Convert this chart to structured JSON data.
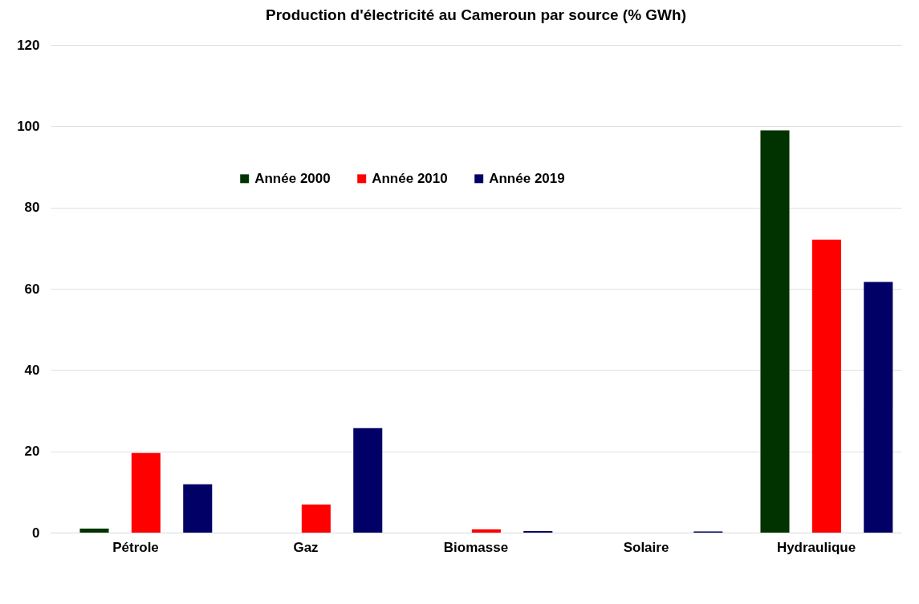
{
  "chart_data": {
    "type": "bar",
    "title": "Production d'électricité au  Cameroun par source (% GWh)",
    "categories": [
      "Pétrole",
      "Gaz",
      "Biomasse",
      "Solaire",
      "Hydraulique"
    ],
    "series": [
      {
        "name": "Année 2000",
        "color": "#003300",
        "values": [
          1.0,
          0,
          0,
          0,
          99.0
        ]
      },
      {
        "name": "Année 2010",
        "color": "#ff0000",
        "values": [
          19.6,
          6.9,
          0.8,
          0,
          72.1
        ]
      },
      {
        "name": "Année 2019",
        "color": "#000066",
        "values": [
          11.9,
          25.7,
          0.4,
          0.3,
          61.7
        ]
      }
    ],
    "ylim": [
      0,
      120
    ],
    "yticks": [
      0,
      20,
      40,
      60,
      80,
      100,
      120
    ],
    "grid": "y",
    "legend": "top"
  }
}
